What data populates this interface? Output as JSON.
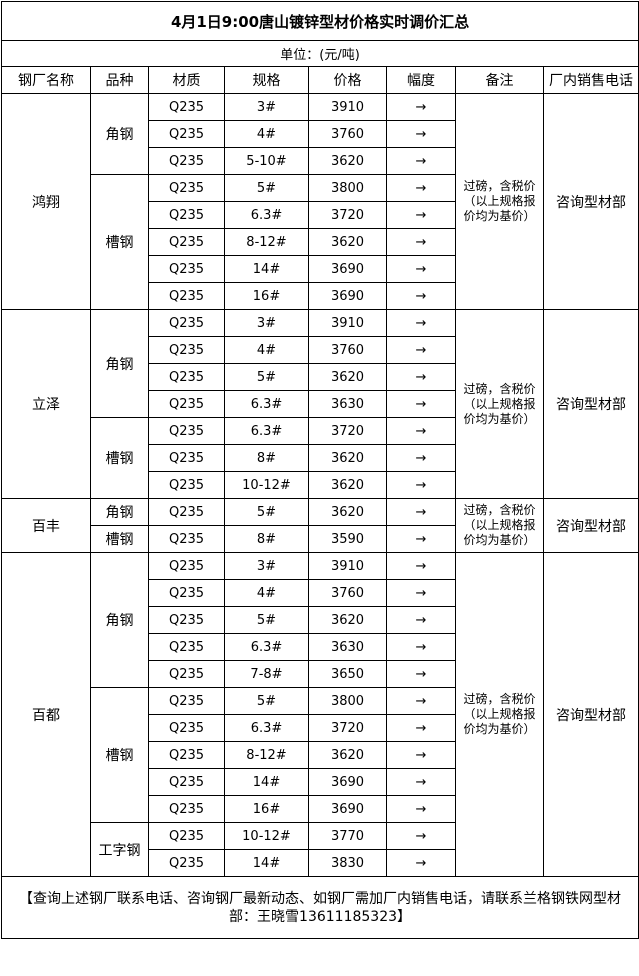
{
  "title": "4月1日9:00唐山镀锌型材价格实时调价汇总",
  "unit": "单位：(元/吨)",
  "headers": [
    "钢厂名称",
    "品种",
    "材质",
    "规格",
    "价格",
    "幅度",
    "备注",
    "厂内销售电话"
  ],
  "mills": [
    {
      "name": "鸿翔",
      "remark": "过磅，含税价（以上规格报价均为基价）",
      "phone": "咨询型材部",
      "varieties": [
        {
          "name": "角钢",
          "rows": [
            {
              "material": "Q235",
              "spec": "3#",
              "price": "3910",
              "change": "→"
            },
            {
              "material": "Q235",
              "spec": "4#",
              "price": "3760",
              "change": "→"
            },
            {
              "material": "Q235",
              "spec": "5-10#",
              "price": "3620",
              "change": "→"
            }
          ]
        },
        {
          "name": "槽钢",
          "rows": [
            {
              "material": "Q235",
              "spec": "5#",
              "price": "3800",
              "change": "→"
            },
            {
              "material": "Q235",
              "spec": "6.3#",
              "price": "3720",
              "change": "→"
            },
            {
              "material": "Q235",
              "spec": "8-12#",
              "price": "3620",
              "change": "→"
            },
            {
              "material": "Q235",
              "spec": "14#",
              "price": "3690",
              "change": "→"
            },
            {
              "material": "Q235",
              "spec": "16#",
              "price": "3690",
              "change": "→"
            }
          ]
        }
      ]
    },
    {
      "name": "立泽",
      "remark": "过磅，含税价（以上规格报价均为基价）",
      "phone": "咨询型材部",
      "varieties": [
        {
          "name": "角钢",
          "rows": [
            {
              "material": "Q235",
              "spec": "3#",
              "price": "3910",
              "change": "→"
            },
            {
              "material": "Q235",
              "spec": "4#",
              "price": "3760",
              "change": "→"
            },
            {
              "material": "Q235",
              "spec": "5#",
              "price": "3620",
              "change": "→"
            },
            {
              "material": "Q235",
              "spec": "6.3#",
              "price": "3630",
              "change": "→"
            }
          ]
        },
        {
          "name": "槽钢",
          "rows": [
            {
              "material": "Q235",
              "spec": "6.3#",
              "price": "3720",
              "change": "→"
            },
            {
              "material": "Q235",
              "spec": "8#",
              "price": "3620",
              "change": "→"
            },
            {
              "material": "Q235",
              "spec": "10-12#",
              "price": "3620",
              "change": "→"
            }
          ]
        }
      ]
    },
    {
      "name": "百丰",
      "remark": "过磅，含税价（以上规格报价均为基价）",
      "phone": "咨询型材部",
      "varieties": [
        {
          "name": "角钢",
          "rows": [
            {
              "material": "Q235",
              "spec": "5#",
              "price": "3620",
              "change": "→"
            }
          ]
        },
        {
          "name": "槽钢",
          "rows": [
            {
              "material": "Q235",
              "spec": "8#",
              "price": "3590",
              "change": "→"
            }
          ]
        }
      ]
    },
    {
      "name": "百都",
      "remark": "过磅，含税价（以上规格报价均为基价）",
      "phone": "咨询型材部",
      "varieties": [
        {
          "name": "角钢",
          "rows": [
            {
              "material": "Q235",
              "spec": "3#",
              "price": "3910",
              "change": "→"
            },
            {
              "material": "Q235",
              "spec": "4#",
              "price": "3760",
              "change": "→"
            },
            {
              "material": "Q235",
              "spec": "5#",
              "price": "3620",
              "change": "→"
            },
            {
              "material": "Q235",
              "spec": "6.3#",
              "price": "3630",
              "change": "→"
            },
            {
              "material": "Q235",
              "spec": "7-8#",
              "price": "3650",
              "change": "→"
            }
          ]
        },
        {
          "name": "槽钢",
          "rows": [
            {
              "material": "Q235",
              "spec": "5#",
              "price": "3800",
              "change": "→"
            },
            {
              "material": "Q235",
              "spec": "6.3#",
              "price": "3720",
              "change": "→"
            },
            {
              "material": "Q235",
              "spec": "8-12#",
              "price": "3620",
              "change": "→"
            },
            {
              "material": "Q235",
              "spec": "14#",
              "price": "3690",
              "change": "→"
            },
            {
              "material": "Q235",
              "spec": "16#",
              "price": "3690",
              "change": "→"
            }
          ]
        },
        {
          "name": "工字钢",
          "rows": [
            {
              "material": "Q235",
              "spec": "10-12#",
              "price": "3770",
              "change": "→"
            },
            {
              "material": "Q235",
              "spec": "14#",
              "price": "3830",
              "change": "→"
            }
          ]
        }
      ]
    }
  ],
  "footer": "【查询上述钢厂联系电话、咨询钢厂最新动态、如钢厂需加厂内销售电话，请联系兰格钢铁网型材部：王晓雪13611185323】"
}
